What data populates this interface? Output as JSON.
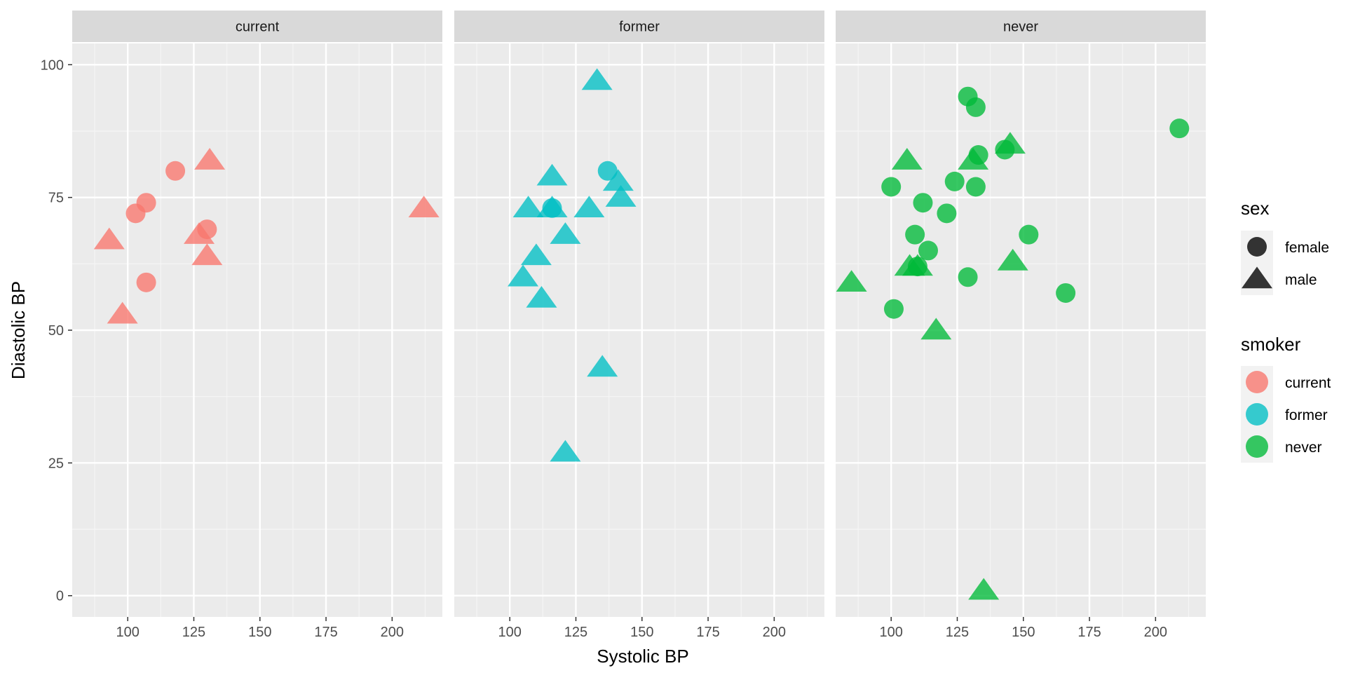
{
  "chart_data": {
    "type": "scatter",
    "facet_by": "smoker",
    "xlabel": "Systolic BP",
    "ylabel": "Diastolic BP",
    "xlim": [
      79,
      219
    ],
    "ylim": [
      -4,
      104
    ],
    "x_ticks": [
      100,
      125,
      150,
      175,
      200
    ],
    "y_ticks": [
      0,
      25,
      50,
      75,
      100
    ],
    "grid": true,
    "legend_position": "right",
    "colors": {
      "current": "#F8766D",
      "former": "#00BFC4",
      "never": "#00BA38"
    },
    "legends": [
      {
        "title": "sex",
        "entries": [
          {
            "label": "female",
            "shape": "circle"
          },
          {
            "label": "male",
            "shape": "triangle"
          }
        ]
      },
      {
        "title": "smoker",
        "entries": [
          {
            "label": "current",
            "shape": "circle"
          },
          {
            "label": "former",
            "shape": "circle"
          },
          {
            "label": "never",
            "shape": "circle"
          }
        ]
      }
    ],
    "panels": [
      {
        "label": "current",
        "points": [
          {
            "x": 118,
            "y": 80,
            "sex": "female"
          },
          {
            "x": 107,
            "y": 74,
            "sex": "female"
          },
          {
            "x": 103,
            "y": 72,
            "sex": "female"
          },
          {
            "x": 130,
            "y": 69,
            "sex": "female"
          },
          {
            "x": 107,
            "y": 59,
            "sex": "female"
          },
          {
            "x": 131,
            "y": 82,
            "sex": "male"
          },
          {
            "x": 212,
            "y": 73,
            "sex": "male"
          },
          {
            "x": 127,
            "y": 68,
            "sex": "male"
          },
          {
            "x": 93,
            "y": 67,
            "sex": "male"
          },
          {
            "x": 130,
            "y": 64,
            "sex": "male"
          },
          {
            "x": 98,
            "y": 53,
            "sex": "male"
          }
        ]
      },
      {
        "label": "former",
        "points": [
          {
            "x": 137,
            "y": 80,
            "sex": "female"
          },
          {
            "x": 116,
            "y": 73,
            "sex": "female"
          },
          {
            "x": 133,
            "y": 97,
            "sex": "male"
          },
          {
            "x": 116,
            "y": 79,
            "sex": "male"
          },
          {
            "x": 141,
            "y": 78,
            "sex": "male"
          },
          {
            "x": 142,
            "y": 75,
            "sex": "male"
          },
          {
            "x": 107,
            "y": 73,
            "sex": "male"
          },
          {
            "x": 116,
            "y": 73,
            "sex": "male"
          },
          {
            "x": 130,
            "y": 73,
            "sex": "male"
          },
          {
            "x": 121,
            "y": 68,
            "sex": "male"
          },
          {
            "x": 110,
            "y": 64,
            "sex": "male"
          },
          {
            "x": 105,
            "y": 60,
            "sex": "male"
          },
          {
            "x": 112,
            "y": 56,
            "sex": "male"
          },
          {
            "x": 135,
            "y": 43,
            "sex": "male"
          },
          {
            "x": 121,
            "y": 27,
            "sex": "male"
          }
        ]
      },
      {
        "label": "never",
        "points": [
          {
            "x": 129,
            "y": 94,
            "sex": "female"
          },
          {
            "x": 132,
            "y": 92,
            "sex": "female"
          },
          {
            "x": 209,
            "y": 88,
            "sex": "female"
          },
          {
            "x": 143,
            "y": 84,
            "sex": "female"
          },
          {
            "x": 133,
            "y": 83,
            "sex": "female"
          },
          {
            "x": 124,
            "y": 78,
            "sex": "female"
          },
          {
            "x": 100,
            "y": 77,
            "sex": "female"
          },
          {
            "x": 132,
            "y": 77,
            "sex": "female"
          },
          {
            "x": 112,
            "y": 74,
            "sex": "female"
          },
          {
            "x": 121,
            "y": 72,
            "sex": "female"
          },
          {
            "x": 109,
            "y": 68,
            "sex": "female"
          },
          {
            "x": 152,
            "y": 68,
            "sex": "female"
          },
          {
            "x": 114,
            "y": 65,
            "sex": "female"
          },
          {
            "x": 110,
            "y": 62,
            "sex": "female"
          },
          {
            "x": 129,
            "y": 60,
            "sex": "female"
          },
          {
            "x": 166,
            "y": 57,
            "sex": "female"
          },
          {
            "x": 101,
            "y": 54,
            "sex": "female"
          },
          {
            "x": 145,
            "y": 85,
            "sex": "male"
          },
          {
            "x": 106,
            "y": 82,
            "sex": "male"
          },
          {
            "x": 131,
            "y": 82,
            "sex": "male"
          },
          {
            "x": 146,
            "y": 63,
            "sex": "male"
          },
          {
            "x": 107,
            "y": 62,
            "sex": "male"
          },
          {
            "x": 110,
            "y": 62,
            "sex": "male"
          },
          {
            "x": 85,
            "y": 59,
            "sex": "male"
          },
          {
            "x": 117,
            "y": 50,
            "sex": "male"
          },
          {
            "x": 135,
            "y": 1,
            "sex": "male"
          }
        ]
      }
    ]
  }
}
